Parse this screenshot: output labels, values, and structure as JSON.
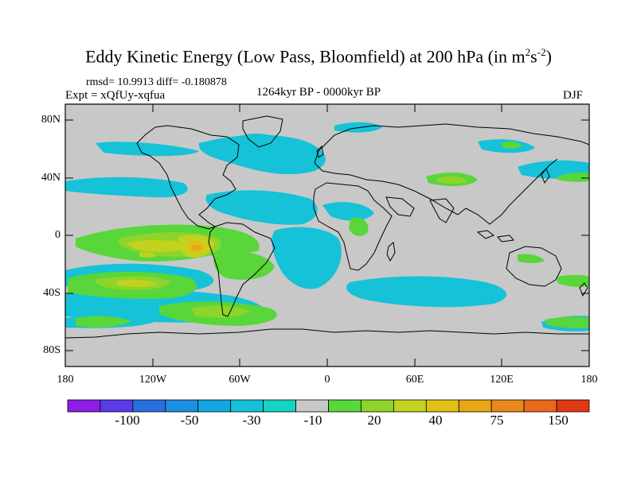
{
  "title": {
    "main": "Eddy Kinetic Energy (Low Pass, Bloomfield) at 200 hPa (in m",
    "sup1": "2",
    "mid": "s",
    "sup2": "-2",
    "end": ")"
  },
  "stats": "rmsd= 10.9913  diff= -0.180878",
  "experiment": "Expt = xQfUy-xqfua",
  "period": "1264kyr BP - 0000kyr BP",
  "season": "DJF",
  "axes": {
    "y_ticks": [
      "80N",
      "40N",
      "0",
      "40S",
      "80S"
    ],
    "x_ticks": [
      "180",
      "120W",
      "60W",
      "0",
      "60E",
      "120E",
      "180"
    ]
  },
  "colorbar": {
    "colors": [
      "#8c1ee8",
      "#5b3be8",
      "#2a6fe0",
      "#1b8fe0",
      "#12a8df",
      "#15c2d8",
      "#15d4c0",
      "#c8c8c8",
      "#58d63a",
      "#8ed42a",
      "#c2d21e",
      "#e0c214",
      "#e8a614",
      "#e88a1a",
      "#e86a1e",
      "#e03a12"
    ],
    "labels": [
      "-100",
      "-50",
      "-30",
      "-10",
      "20",
      "40",
      "75",
      "150"
    ]
  },
  "colors": {
    "background": "#c8c8c8",
    "cyan": "#15c2d8",
    "teal": "#15d4c0",
    "green": "#58d63a",
    "lightgreen": "#8ed42a",
    "yellowgreen": "#c2d21e",
    "yellow": "#e0c214",
    "orange": "#e8a614"
  }
}
